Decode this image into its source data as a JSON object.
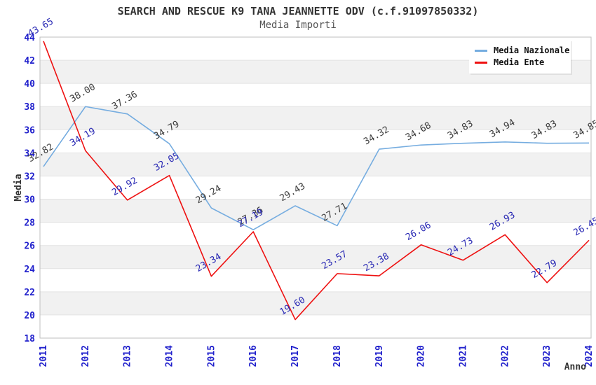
{
  "title": "SEARCH AND RESCUE K9 TANA JEANNETTE ODV (c.f.91097850332)",
  "subtitle": "Media Importi",
  "legend": {
    "position": "top-right",
    "items": [
      {
        "label": "Media Nazionale",
        "color": "#76ade0"
      },
      {
        "label": "Media Ente",
        "color": "#ee1111"
      }
    ]
  },
  "chart_data": {
    "type": "line",
    "title": "SEARCH AND RESCUE K9 TANA JEANNETTE ODV (c.f.91097850332)",
    "subtitle": "Media Importi",
    "xlabel": "Anno",
    "ylabel": "Media",
    "x": [
      2011,
      2012,
      2013,
      2014,
      2015,
      2016,
      2017,
      2018,
      2019,
      2020,
      2021,
      2022,
      2023,
      2024
    ],
    "series": [
      {
        "name": "Media Nazionale",
        "color": "#76ade0",
        "label_color": "#3c3c3c",
        "values": [
          32.82,
          38.0,
          37.36,
          34.79,
          29.24,
          27.36,
          29.43,
          27.71,
          34.32,
          34.68,
          34.83,
          34.94,
          34.83,
          34.85
        ]
      },
      {
        "name": "Media Ente",
        "color": "#ee1111",
        "label_color": "#2828b4",
        "values": [
          43.65,
          34.19,
          29.92,
          32.05,
          23.34,
          27.19,
          19.6,
          23.57,
          23.38,
          26.06,
          24.73,
          26.93,
          22.79,
          26.45
        ]
      }
    ],
    "ylim": [
      18,
      44
    ],
    "ytick_step": 2,
    "grid": "horizontal, alternating shaded bands every 2 units",
    "legend_position": "top-right",
    "colors": {
      "tick_label": "#2020cc",
      "axis_title": "#333333",
      "band_fill": "#f1f1f1",
      "gridline": "#e3e3e3",
      "plot_border": "#bfbfbf"
    }
  }
}
